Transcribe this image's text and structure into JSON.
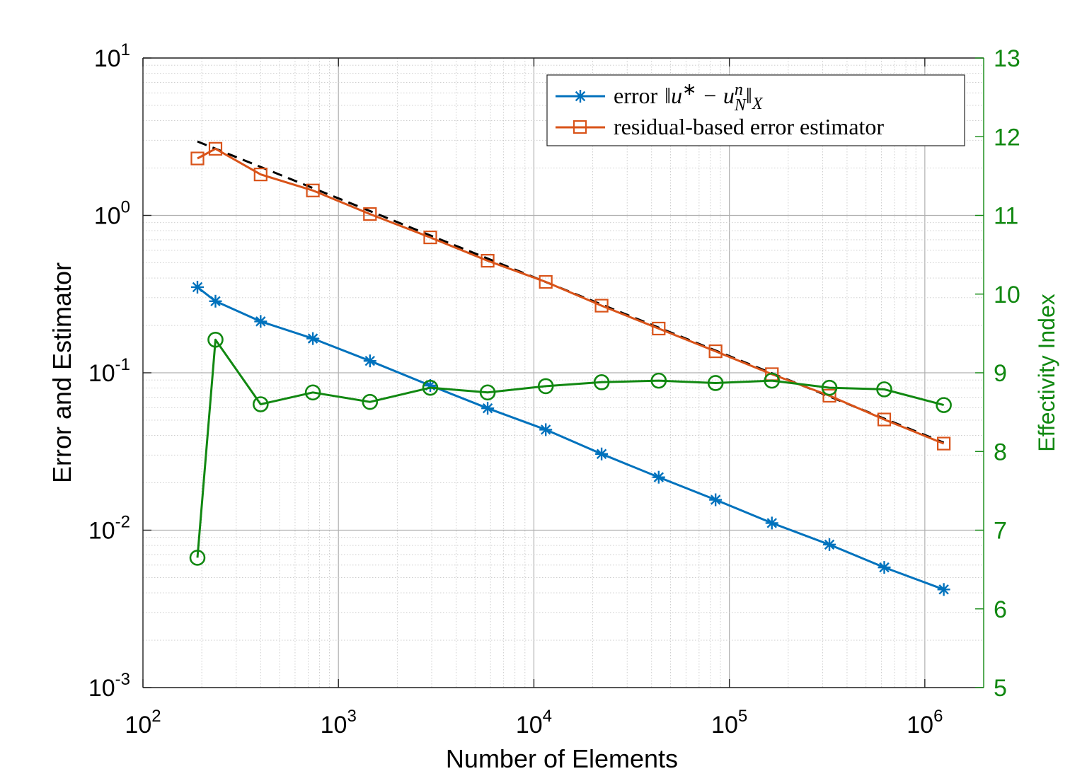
{
  "chart_data": {
    "type": "line",
    "xscale": "log",
    "xlabel": "Number of Elements",
    "ylabel": "Error and Estimator",
    "y2label": "Effectivity Index",
    "xlim": [
      100,
      2000000
    ],
    "ylim": [
      0.001,
      10
    ],
    "y2lim": [
      5,
      13
    ],
    "xticks": [
      {
        "base": "10",
        "exp": "2"
      },
      {
        "base": "10",
        "exp": "3"
      },
      {
        "base": "10",
        "exp": "4"
      },
      {
        "base": "10",
        "exp": "5"
      },
      {
        "base": "10",
        "exp": "6"
      }
    ],
    "yticks": [
      {
        "base": "10",
        "exp": "-3"
      },
      {
        "base": "10",
        "exp": "-2"
      },
      {
        "base": "10",
        "exp": "-1"
      },
      {
        "base": "10",
        "exp": "0"
      },
      {
        "base": "10",
        "exp": "1"
      }
    ],
    "y2ticks": [
      "5",
      "6",
      "7",
      "8",
      "9",
      "10",
      "11",
      "12",
      "13"
    ],
    "x": [
      190,
      235,
      400,
      740,
      1450,
      2950,
      5800,
      11500,
      22200,
      43500,
      85000,
      165000,
      325000,
      620000,
      1250000
    ],
    "series": [
      {
        "name": "error",
        "legend": "error ‖u* − u_N^n‖_X",
        "axis": "left",
        "color": "#0072BD",
        "marker": "asterisk",
        "values": [
          0.35,
          0.285,
          0.212,
          0.165,
          0.119,
          0.083,
          0.0595,
          0.0435,
          0.0305,
          0.0217,
          0.0156,
          0.0111,
          0.0081,
          0.0058,
          0.0042
        ]
      },
      {
        "name": "estimator",
        "legend": "residual-based error estimator",
        "axis": "left",
        "color": "#D95319",
        "marker": "square",
        "values": [
          2.3,
          2.65,
          1.82,
          1.44,
          1.02,
          0.725,
          0.515,
          0.378,
          0.267,
          0.191,
          0.137,
          0.098,
          0.0715,
          0.0505,
          0.0355
        ]
      },
      {
        "name": "effectivity",
        "axis": "right",
        "color": "#118811",
        "marker": "circle",
        "values": [
          6.65,
          9.42,
          8.6,
          8.75,
          8.63,
          8.81,
          8.75,
          8.83,
          8.88,
          8.9,
          8.87,
          8.9,
          8.81,
          8.79,
          8.59
        ]
      }
    ],
    "reference_line": {
      "style": "dashed",
      "color": "#000000",
      "x": [
        190,
        1250000
      ],
      "values": [
        2.95,
        0.036
      ]
    },
    "legend": {
      "position": "top-right",
      "error_prefix": "error",
      "estimator_label": "residual-based error estimator"
    },
    "grid": true
  }
}
